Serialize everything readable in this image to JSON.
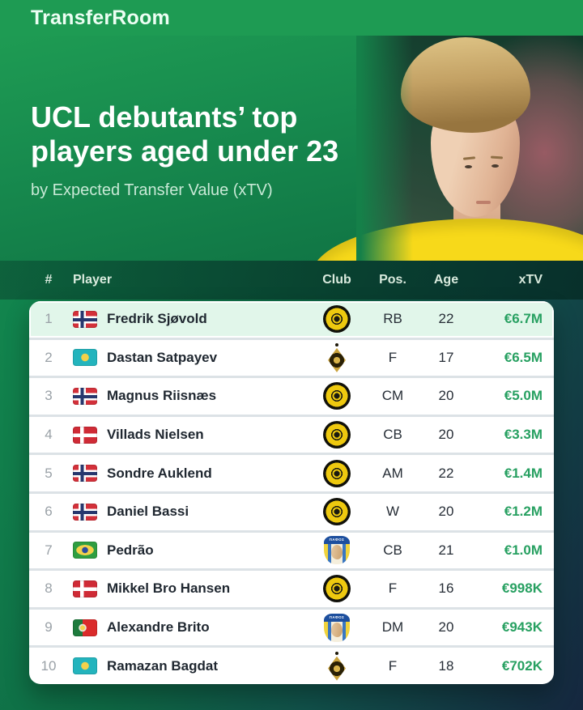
{
  "colors": {
    "brand_green": "#1e9b53",
    "value_green": "#27a061",
    "highlight_row": "#e1f6ea",
    "dark_navy": "#15273f"
  },
  "topbar": {
    "logo": "TransferRoom"
  },
  "hero": {
    "title_line1": "UCL debutants’ top",
    "title_line2": "players aged under 23",
    "subtitle": "by Expected Transfer Value (xTV)"
  },
  "table": {
    "headers": {
      "rank": "#",
      "player": "Player",
      "club": "Club",
      "pos": "Pos.",
      "age": "Age",
      "xtv": "xTV"
    },
    "pafos_badge_text": "ΠΑΦΟΣ",
    "rows": [
      {
        "rank": "1",
        "flag": "norway",
        "player": "Fredrik Sjøvold",
        "club": "bodo-glimt",
        "pos": "RB",
        "age": "22",
        "xtv": "€6.7M",
        "highlighted": true
      },
      {
        "rank": "2",
        "flag": "kazakhstan",
        "player": "Dastan Satpayev",
        "club": "kairat",
        "pos": "F",
        "age": "17",
        "xtv": "€6.5M",
        "highlighted": false
      },
      {
        "rank": "3",
        "flag": "norway",
        "player": "Magnus Riisnæs",
        "club": "bodo-glimt",
        "pos": "CM",
        "age": "20",
        "xtv": "€5.0M",
        "highlighted": false
      },
      {
        "rank": "4",
        "flag": "denmark",
        "player": "Villads Nielsen",
        "club": "bodo-glimt",
        "pos": "CB",
        "age": "20",
        "xtv": "€3.3M",
        "highlighted": false
      },
      {
        "rank": "5",
        "flag": "norway",
        "player": "Sondre Auklend",
        "club": "bodo-glimt",
        "pos": "AM",
        "age": "22",
        "xtv": "€1.4M",
        "highlighted": false
      },
      {
        "rank": "6",
        "flag": "norway",
        "player": "Daniel Bassi",
        "club": "bodo-glimt",
        "pos": "W",
        "age": "20",
        "xtv": "€1.2M",
        "highlighted": false
      },
      {
        "rank": "7",
        "flag": "brazil",
        "player": "Pedrão",
        "club": "pafos",
        "pos": "CB",
        "age": "21",
        "xtv": "€1.0M",
        "highlighted": false
      },
      {
        "rank": "8",
        "flag": "denmark",
        "player": "Mikkel Bro Hansen",
        "club": "bodo-glimt",
        "pos": "F",
        "age": "16",
        "xtv": "€998K",
        "highlighted": false
      },
      {
        "rank": "9",
        "flag": "portugal",
        "player": "Alexandre Brito",
        "club": "pafos",
        "pos": "DM",
        "age": "20",
        "xtv": "€943K",
        "highlighted": false
      },
      {
        "rank": "10",
        "flag": "kazakhstan",
        "player": "Ramazan Bagdat",
        "club": "kairat",
        "pos": "F",
        "age": "18",
        "xtv": "€702K",
        "highlighted": false
      }
    ]
  },
  "chart_data": {
    "type": "table",
    "title": "UCL debutants’ top players aged under 23",
    "subtitle": "by Expected Transfer Value (xTV)",
    "columns": [
      "#",
      "Player",
      "Club",
      "Pos.",
      "Age",
      "xTV"
    ],
    "rows": [
      [
        "1",
        "Fredrik Sjøvold",
        "Bodø/Glimt",
        "RB",
        "22",
        "€6.7M"
      ],
      [
        "2",
        "Dastan Satpayev",
        "Kairat",
        "F",
        "17",
        "€6.5M"
      ],
      [
        "3",
        "Magnus Riisnæs",
        "Bodø/Glimt",
        "CM",
        "20",
        "€5.0M"
      ],
      [
        "4",
        "Villads Nielsen",
        "Bodø/Glimt",
        "CB",
        "20",
        "€3.3M"
      ],
      [
        "5",
        "Sondre Auklend",
        "Bodø/Glimt",
        "AM",
        "22",
        "€1.4M"
      ],
      [
        "6",
        "Daniel Bassi",
        "Bodø/Glimt",
        "W",
        "20",
        "€1.2M"
      ],
      [
        "7",
        "Pedrão",
        "Pafos",
        "CB",
        "21",
        "€1.0M"
      ],
      [
        "8",
        "Mikkel Bro Hansen",
        "Bodø/Glimt",
        "F",
        "16",
        "€998K"
      ],
      [
        "9",
        "Alexandre Brito",
        "Pafos",
        "DM",
        "20",
        "€943K"
      ],
      [
        "10",
        "Ramazan Bagdat",
        "Kairat",
        "F",
        "18",
        "€702K"
      ]
    ]
  }
}
